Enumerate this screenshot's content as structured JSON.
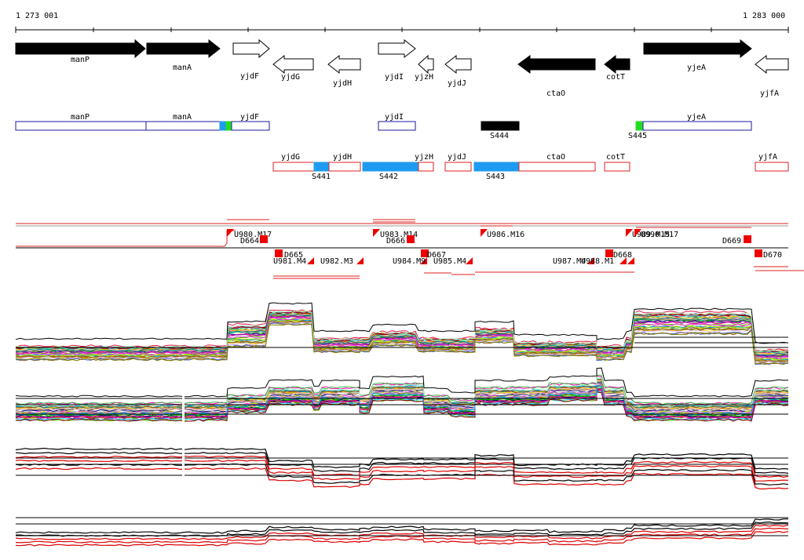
{
  "ruler": {
    "start_label": "1 273 001",
    "end_label": "1 283 000"
  },
  "genes_top": [
    {
      "label": "manP",
      "dir": "right",
      "filled": true
    },
    {
      "label": "manA",
      "dir": "right",
      "filled": true
    },
    {
      "label": "yjdF",
      "dir": "right",
      "filled": false
    },
    {
      "label": "yjdG",
      "dir": "left",
      "filled": false
    },
    {
      "label": "yjdH",
      "dir": "left",
      "filled": false
    },
    {
      "label": "yjdI",
      "dir": "right",
      "filled": false
    },
    {
      "label": "yjzH",
      "dir": "left",
      "filled": false
    },
    {
      "label": "yjdJ",
      "dir": "left",
      "filled": false
    },
    {
      "label": "ctaO",
      "dir": "left",
      "filled": true
    },
    {
      "label": "cotT",
      "dir": "left",
      "filled": true
    },
    {
      "label": "yjeA",
      "dir": "right",
      "filled": true
    },
    {
      "label": "yjfA",
      "dir": "left",
      "filled": false
    }
  ],
  "blue_boxes": [
    {
      "label": "manP"
    },
    {
      "label": "manA"
    },
    {
      "label": "yjdF"
    },
    {
      "label": "yjdI"
    },
    {
      "label": "yjeA"
    }
  ],
  "red_boxes": [
    {
      "label": "yjdG"
    },
    {
      "label": "yjdH"
    },
    {
      "label": "yjzH"
    },
    {
      "label": "yjdJ"
    },
    {
      "label": "ctaO"
    },
    {
      "label": "cotT"
    },
    {
      "label": "yjfA"
    }
  ],
  "segments": [
    {
      "label": "S441",
      "color": "#1e9bf0"
    },
    {
      "label": "S442",
      "color": "#1e9bf0"
    },
    {
      "label": "S443",
      "color": "#1e9bf0"
    },
    {
      "label": "S444",
      "color": "#000000"
    },
    {
      "label": "S445",
      "color": "#22dd22"
    }
  ],
  "markers": [
    {
      "label": "U980.M17"
    },
    {
      "label": "D664"
    },
    {
      "label": "D665"
    },
    {
      "label": "U981.M4"
    },
    {
      "label": "U982.M3"
    },
    {
      "label": "U983.M14"
    },
    {
      "label": "D666"
    },
    {
      "label": "D667"
    },
    {
      "label": "U984.M9"
    },
    {
      "label": "U985.M4"
    },
    {
      "label": "U986.M16"
    },
    {
      "label": "U987.M4"
    },
    {
      "label": "U988.M1"
    },
    {
      "label": "D668"
    },
    {
      "label": "U989.M15"
    },
    {
      "label": "U990.M17"
    },
    {
      "label": "D669"
    },
    {
      "label": "D670"
    }
  ],
  "colors": {
    "gene_fill": "#000000",
    "blue_outline": "#1a1aa0",
    "red_outline": "#dd2222",
    "marker": "#ee0000"
  }
}
